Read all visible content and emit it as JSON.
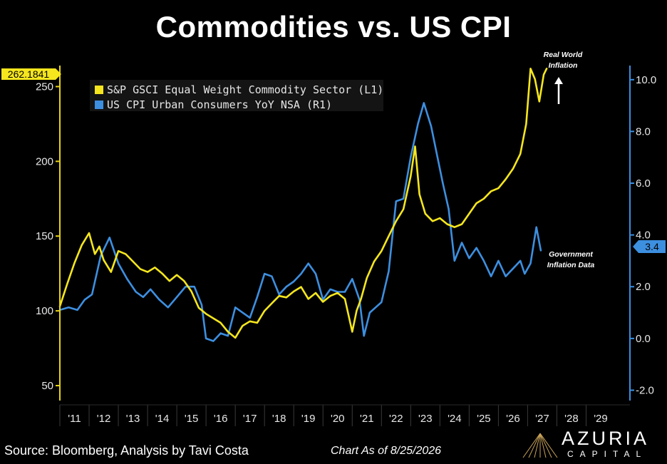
{
  "title": "Commodities vs. US CPI",
  "legend": {
    "series1": "S&P GSCI Equal Weight Commodity Sector  (L1)",
    "series2": "US CPI Urban Consumers YoY NSA  (R1)"
  },
  "annotations": {
    "real_world_line1": "Real World",
    "real_world_line2": "Inflation",
    "government_line1": "Government",
    "government_line2": "Inflation Data"
  },
  "last_value_labels": {
    "left": "262.1841",
    "right": "3.4"
  },
  "footer": {
    "source": "Source: Bloomberg, Analysis by Tavi Costa",
    "date": "Chart As of 8/25/2026"
  },
  "logo": {
    "name": "AZURIA",
    "sub": "CAPITAL"
  },
  "colors": {
    "commodity": "#f5e61e",
    "cpi": "#3d8fe0",
    "left_axis": "#e8d21a",
    "right_axis": "#3d8fe0",
    "background": "#000000"
  },
  "chart_data": {
    "type": "line",
    "title": "Commodities vs. US CPI",
    "x_tick_labels": [
      "'11",
      "'12",
      "'13",
      "'14",
      "'15",
      "'16",
      "'17",
      "'18",
      "'19",
      "'20",
      "'21",
      "'22",
      "'23",
      "'24",
      "'25",
      "'26",
      "'27",
      "'28",
      "'29"
    ],
    "xlim": [
      2010.0,
      2029.5
    ],
    "left_axis": {
      "ticks": [
        50,
        100,
        150,
        200,
        250
      ],
      "ylim": [
        40,
        265
      ]
    },
    "right_axis": {
      "ticks": [
        -2.0,
        0.0,
        2.0,
        4.0,
        6.0,
        8.0,
        10.0
      ],
      "tick_labels": [
        "-2.0",
        "0.0",
        "2.0",
        "4.0",
        "6.0",
        "8.0",
        "10.0"
      ],
      "ylim": [
        -2.4,
        10.6
      ]
    },
    "legend_position": "top-left",
    "series": [
      {
        "name": "S&P GSCI Equal Weight Commodity Sector  (L1)",
        "axis": "left",
        "x": [
          2010.0,
          2010.25,
          2010.5,
          2010.75,
          2011.0,
          2011.2,
          2011.35,
          2011.5,
          2011.75,
          2012.0,
          2012.25,
          2012.5,
          2012.75,
          2013.0,
          2013.25,
          2013.5,
          2013.75,
          2014.0,
          2014.25,
          2014.5,
          2014.75,
          2015.0,
          2015.25,
          2015.5,
          2015.75,
          2016.0,
          2016.25,
          2016.5,
          2016.75,
          2017.0,
          2017.25,
          2017.5,
          2017.75,
          2018.0,
          2018.25,
          2018.5,
          2018.75,
          2019.0,
          2019.25,
          2019.5,
          2019.75,
          2020.0,
          2020.15,
          2020.3,
          2020.5,
          2020.75,
          2021.0,
          2021.25,
          2021.5,
          2021.75,
          2022.0,
          2022.15,
          2022.3,
          2022.5,
          2022.75,
          2023.0,
          2023.25,
          2023.5,
          2023.75,
          2024.0,
          2024.25,
          2024.5,
          2024.75,
          2025.0,
          2025.25,
          2025.5,
          2025.75,
          2025.95,
          2026.1,
          2026.25,
          2026.4,
          2026.55,
          2026.65
        ],
        "values": [
          103,
          118,
          132,
          144,
          152,
          138,
          143,
          134,
          126,
          140,
          138,
          133,
          128,
          126,
          129,
          125,
          120,
          124,
          120,
          113,
          102,
          98,
          95,
          92,
          86,
          82,
          90,
          93,
          92,
          100,
          105,
          110,
          109,
          113,
          116,
          108,
          112,
          106,
          110,
          112,
          108,
          86,
          100,
          108,
          122,
          133,
          140,
          150,
          160,
          168,
          190,
          210,
          178,
          165,
          160,
          162,
          158,
          156,
          158,
          165,
          172,
          175,
          180,
          182,
          188,
          195,
          205,
          225,
          262,
          255,
          240,
          258,
          262
        ]
      },
      {
        "name": "US CPI Urban Consumers YoY NSA  (R1)",
        "axis": "right",
        "x": [
          2010.0,
          2010.3,
          2010.6,
          2010.85,
          2011.1,
          2011.4,
          2011.7,
          2012.0,
          2012.3,
          2012.6,
          2012.85,
          2013.1,
          2013.4,
          2013.7,
          2014.0,
          2014.3,
          2014.6,
          2014.85,
          2015.0,
          2015.25,
          2015.5,
          2015.75,
          2016.0,
          2016.25,
          2016.5,
          2016.75,
          2017.0,
          2017.25,
          2017.5,
          2017.75,
          2018.0,
          2018.25,
          2018.5,
          2018.75,
          2019.0,
          2019.25,
          2019.5,
          2019.75,
          2020.0,
          2020.25,
          2020.4,
          2020.6,
          2020.8,
          2021.0,
          2021.25,
          2021.5,
          2021.75,
          2022.0,
          2022.25,
          2022.45,
          2022.7,
          2022.9,
          2023.1,
          2023.3,
          2023.5,
          2023.75,
          2024.0,
          2024.25,
          2024.5,
          2024.75,
          2025.0,
          2025.25,
          2025.5,
          2025.75,
          2025.9,
          2026.1,
          2026.3,
          2026.45
        ],
        "values": [
          1.1,
          1.2,
          1.1,
          1.5,
          1.7,
          3.2,
          3.9,
          2.9,
          2.3,
          1.8,
          1.6,
          1.9,
          1.5,
          1.2,
          1.6,
          2.0,
          2.0,
          1.3,
          0.0,
          -0.1,
          0.2,
          0.1,
          1.2,
          1.0,
          0.8,
          1.6,
          2.5,
          2.4,
          1.7,
          2.0,
          2.2,
          2.5,
          2.9,
          2.5,
          1.5,
          1.9,
          1.8,
          1.8,
          2.3,
          1.5,
          0.1,
          1.0,
          1.2,
          1.4,
          2.6,
          5.3,
          5.4,
          7.0,
          8.3,
          9.1,
          8.2,
          7.1,
          6.0,
          5.0,
          3.0,
          3.7,
          3.1,
          3.5,
          3.0,
          2.4,
          3.0,
          2.4,
          2.7,
          3.0,
          2.5,
          2.9,
          4.3,
          3.4
        ]
      }
    ]
  }
}
